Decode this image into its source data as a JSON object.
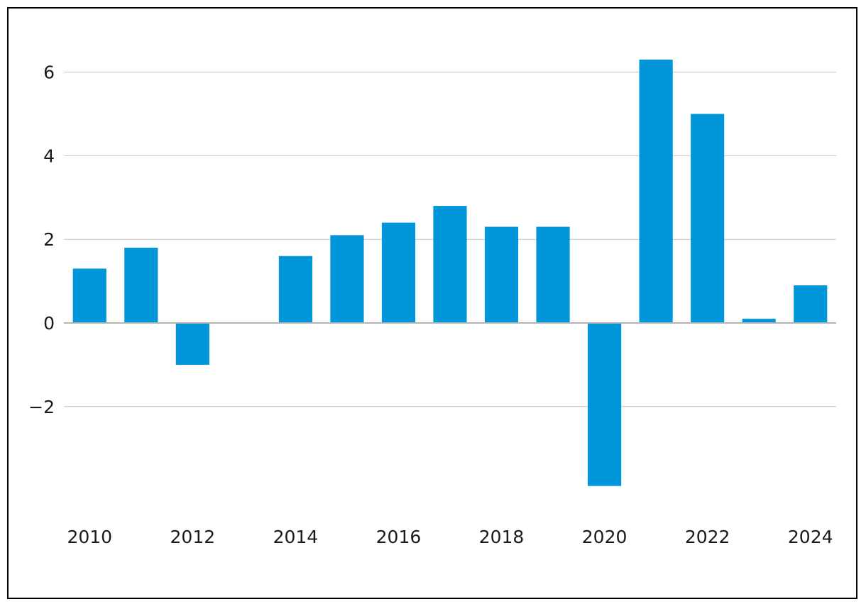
{
  "chart_data": {
    "type": "bar",
    "title": "",
    "xlabel": "",
    "ylabel": "",
    "categories": [
      "2010",
      "2011",
      "2012",
      "2013",
      "2014",
      "2015",
      "2016",
      "2017",
      "2018",
      "2019",
      "2020",
      "2021",
      "2022",
      "2023",
      "2024"
    ],
    "values": [
      1.3,
      1.8,
      -1.0,
      0.0,
      1.6,
      2.1,
      2.4,
      2.8,
      2.3,
      2.3,
      -3.9,
      6.3,
      5.0,
      0.1,
      0.9
    ],
    "ylim": [
      -4.5,
      7.3
    ],
    "yticks": [
      "6",
      "4",
      "2",
      "0",
      "−2"
    ],
    "ytick_values": [
      6,
      4,
      2,
      0,
      -2
    ],
    "xtick_labels": [
      "2010",
      "2012",
      "2014",
      "2016",
      "2018",
      "2020",
      "2022",
      "2024"
    ],
    "grid": "horizontal",
    "legend": "none",
    "colors": {
      "bar": "#0096d9",
      "grid": "#c4c4c4",
      "axis": "#b3b3b3",
      "text": "#1a1a1a",
      "frame": "#000000"
    }
  }
}
